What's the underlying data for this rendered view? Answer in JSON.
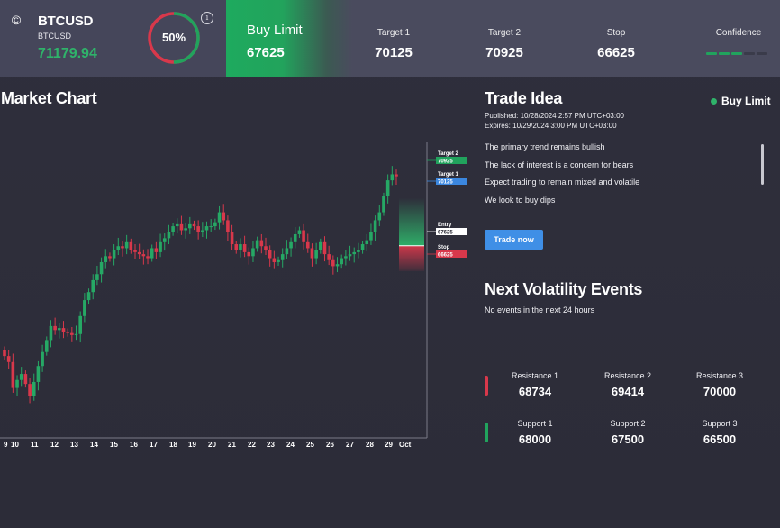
{
  "header": {
    "symbol": "BTCUSD",
    "symbol_sub": "BTCUSD",
    "price": "71179.94",
    "gauge_value": "50%",
    "gauge_fraction": 0.5,
    "info_icon": "i",
    "coin_icon": "©",
    "signal_label": "Buy Limit",
    "signal_value": "67625",
    "columns": [
      {
        "label": "Target 1",
        "value": "70125"
      },
      {
        "label": "Target 2",
        "value": "70925"
      },
      {
        "label": "Stop",
        "value": "66625"
      }
    ],
    "confidence_label": "Confidence",
    "confidence_level": 3,
    "confidence_total": 5
  },
  "chart": {
    "title": "Market Chart"
  },
  "chart_data": {
    "type": "candlestick",
    "x_ticks": [
      "9",
      "10",
      "11",
      "12",
      "13",
      "14",
      "15",
      "16",
      "17",
      "18",
      "19",
      "20",
      "21",
      "22",
      "23",
      "24",
      "25",
      "26",
      "27",
      "28",
      "29",
      "Oct"
    ],
    "ylim": [
      58000,
      72800
    ],
    "series_close": [
      62100,
      61800,
      60500,
      60900,
      61200,
      60700,
      60100,
      60800,
      61600,
      62300,
      62900,
      63600,
      63400,
      63500,
      63300,
      63250,
      63150,
      63200,
      64100,
      64900,
      65300,
      65900,
      66200,
      66800,
      67100,
      67000,
      67400,
      67600,
      67500,
      67800,
      67400,
      67300,
      67200,
      67100,
      67000,
      67500,
      67300,
      67800,
      68000,
      68300,
      68600,
      68700,
      68400,
      68500,
      68700,
      68600,
      68300,
      68400,
      68600,
      68600,
      68800,
      69300,
      68900,
      68300,
      67700,
      67400,
      67700,
      67300,
      67100,
      67500,
      67900,
      67600,
      67400,
      67000,
      66800,
      66900,
      67200,
      67500,
      67800,
      68200,
      68400,
      67800,
      67500,
      67000,
      67400,
      67800,
      67200,
      66900,
      66600,
      66700,
      67000,
      67100,
      67200,
      67300,
      67400,
      67700,
      67900,
      68300,
      68900,
      69300,
      70100,
      70900,
      71200,
      71100
    ],
    "markers": [
      {
        "label": "Target 2",
        "value": "70925",
        "color": "#21a35d"
      },
      {
        "label": "Target 1",
        "value": "70125",
        "color": "#3b87e0"
      },
      {
        "label": "Entry",
        "value": "67625",
        "color": "#ffffff"
      },
      {
        "label": "Stop",
        "value": "66625",
        "color": "#d8384b"
      }
    ],
    "colors": {
      "up": "#26a865",
      "down": "#d8384b"
    }
  },
  "idea": {
    "title": "Trade Idea",
    "signal": "Buy Limit",
    "published": "Published: 10/28/2024 2:57 PM UTC+03:00",
    "expires": "Expires:  10/29/2024 3:00 PM UTC+03:00",
    "lines": [
      "The primary trend remains bullish",
      "The lack of interest is a concern for bears",
      "Expect trading to remain mixed and volatile",
      "We look to buy dips"
    ],
    "button": "Trade now"
  },
  "volatility": {
    "title": "Next Volatility Events",
    "text": "No events in the next 24 hours"
  },
  "levels": {
    "resistance": [
      {
        "label": "Resistance 1",
        "value": "68734"
      },
      {
        "label": "Resistance 2",
        "value": "69414"
      },
      {
        "label": "Resistance 3",
        "value": "70000"
      }
    ],
    "support": [
      {
        "label": "Support 1",
        "value": "68000"
      },
      {
        "label": "Support 2",
        "value": "67500"
      },
      {
        "label": "Support 3",
        "value": "66500"
      }
    ],
    "resistance_color": "#d8384b",
    "support_color": "#21a35d"
  }
}
